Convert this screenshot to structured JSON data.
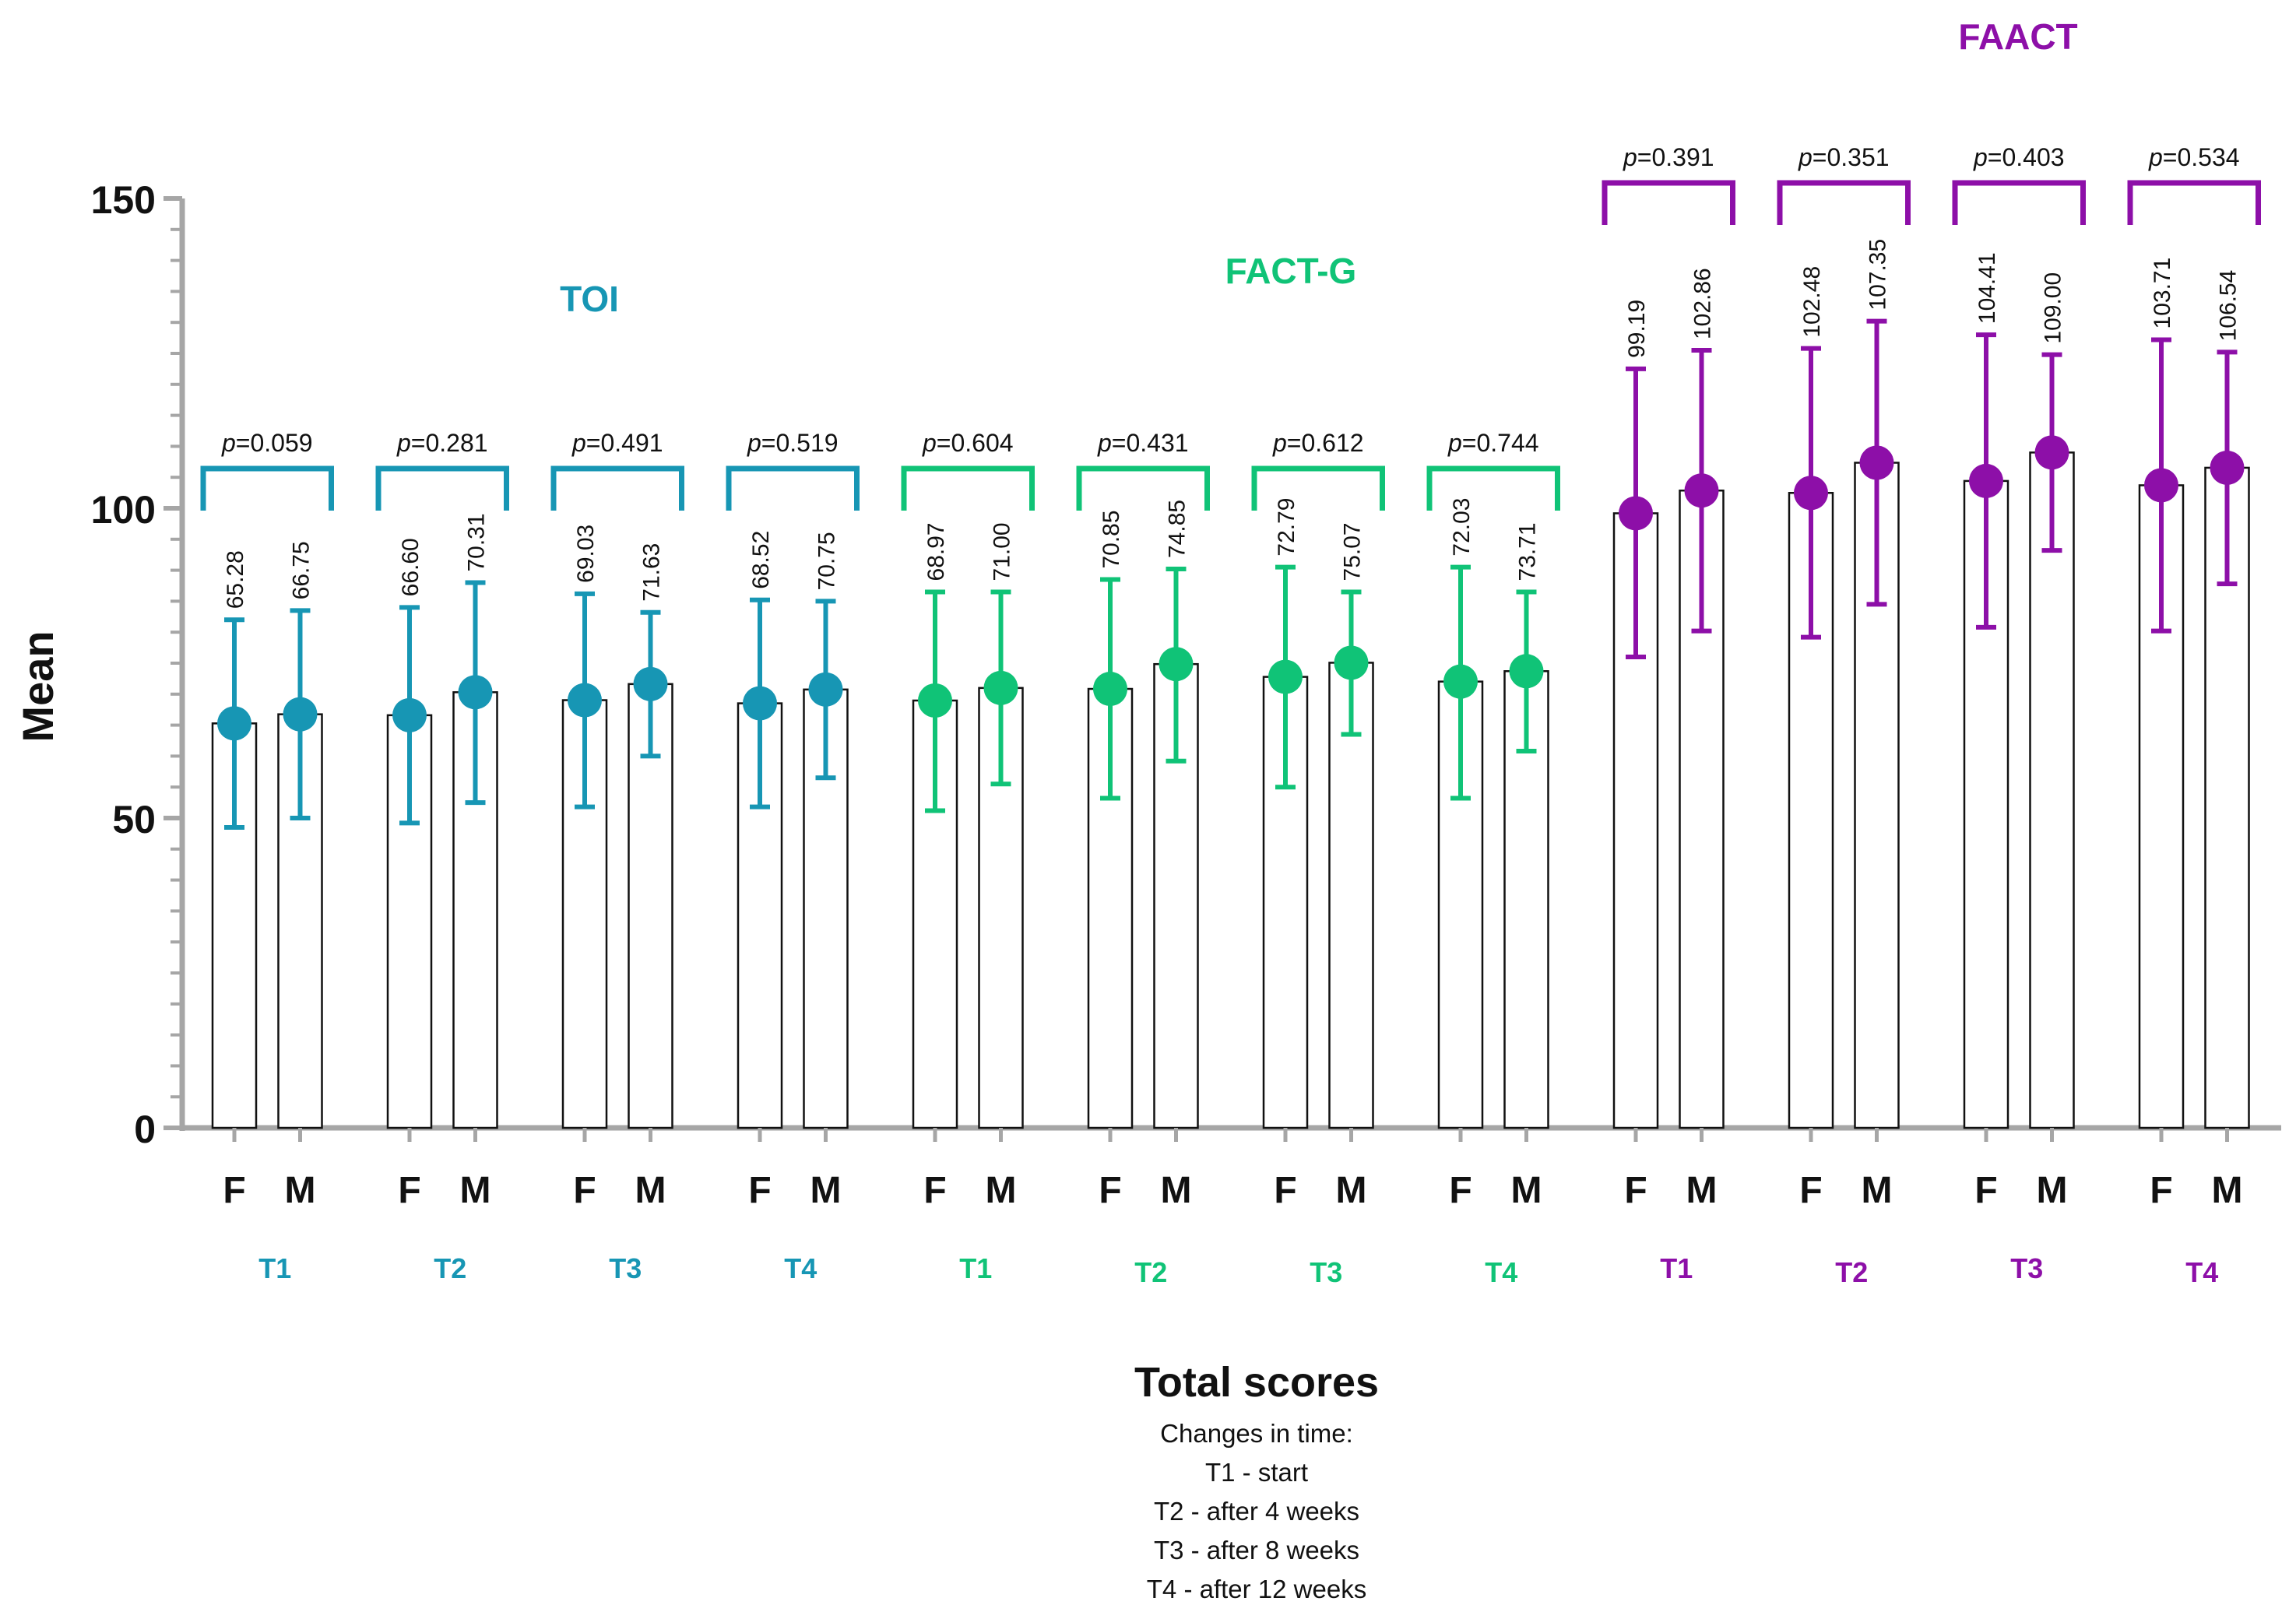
{
  "chart_data": {
    "type": "bar",
    "title": "",
    "ylabel": "Mean",
    "xlabel": "Total scores",
    "ylim": [
      0,
      150
    ],
    "y_ticks": [
      "0",
      "50",
      "100",
      "150"
    ],
    "p_prefix": "p",
    "colors": {
      "TOI": "#1796b4",
      "FACT-G": "#10c377",
      "FAACT": "#8d0fa8",
      "bar_fill": "#ffffff",
      "bar_stroke": "#111111",
      "axis": "#a6a6a6"
    },
    "groups": [
      {
        "name": "TOI",
        "timepoints": [
          {
            "label": "T1",
            "p": "=0.059",
            "F": {
              "mean": 65.28,
              "label": "65.28",
              "lo": 48.5,
              "hi": 82
            },
            "M": {
              "mean": 66.75,
              "label": "66.75",
              "lo": 50,
              "hi": 83.5
            }
          },
          {
            "label": "T2",
            "p": "=0.281",
            "F": {
              "mean": 66.6,
              "label": "66.60",
              "lo": 49.2,
              "hi": 84
            },
            "M": {
              "mean": 70.31,
              "label": "70.31",
              "lo": 52.5,
              "hi": 88
            }
          },
          {
            "label": "T3",
            "p": "=0.491",
            "F": {
              "mean": 69.03,
              "label": "69.03",
              "lo": 51.8,
              "hi": 86.2
            },
            "M": {
              "mean": 71.63,
              "label": "71.63",
              "lo": 60,
              "hi": 83.2
            }
          },
          {
            "label": "T4",
            "p": "=0.519",
            "F": {
              "mean": 68.52,
              "label": "68.52",
              "lo": 51.8,
              "hi": 85.2
            },
            "M": {
              "mean": 70.75,
              "label": "70.75",
              "lo": 56.5,
              "hi": 85
            }
          }
        ]
      },
      {
        "name": "FACT-G",
        "timepoints": [
          {
            "label": "T1",
            "p": "=0.604",
            "F": {
              "mean": 68.97,
              "label": "68.97",
              "lo": 51.2,
              "hi": 86.5
            },
            "M": {
              "mean": 71.0,
              "label": "71.00",
              "lo": 55.5,
              "hi": 86.5
            }
          },
          {
            "label": "T2",
            "p": "=0.431",
            "F": {
              "mean": 70.85,
              "label": "70.85",
              "lo": 53.2,
              "hi": 88.5
            },
            "M": {
              "mean": 74.85,
              "label": "74.85",
              "lo": 59.2,
              "hi": 90.2
            }
          },
          {
            "label": "T3",
            "p": "=0.612",
            "F": {
              "mean": 72.79,
              "label": "72.79",
              "lo": 55,
              "hi": 90.5
            },
            "M": {
              "mean": 75.07,
              "label": "75.07",
              "lo": 63.5,
              "hi": 86.5
            }
          },
          {
            "label": "T4",
            "p": "=0.744",
            "F": {
              "mean": 72.03,
              "label": "72.03",
              "lo": 53.2,
              "hi": 90.5
            },
            "M": {
              "mean": 73.71,
              "label": "73.71",
              "lo": 60.8,
              "hi": 86.5
            }
          }
        ]
      },
      {
        "name": "FAACT",
        "timepoints": [
          {
            "label": "T1",
            "p": "=0.391",
            "F": {
              "mean": 99.19,
              "label": "99.19",
              "lo": 76,
              "hi": 122.5
            },
            "M": {
              "mean": 102.86,
              "label": "102.86",
              "lo": 80.2,
              "hi": 125.5
            }
          },
          {
            "label": "T2",
            "p": "=0.351",
            "F": {
              "mean": 102.48,
              "label": "102.48",
              "lo": 79.2,
              "hi": 125.8
            },
            "M": {
              "mean": 107.35,
              "label": "107.35",
              "lo": 84.5,
              "hi": 130.2
            }
          },
          {
            "label": "T3",
            "p": "=0.403",
            "F": {
              "mean": 104.41,
              "label": "104.41",
              "lo": 80.8,
              "hi": 128
            },
            "M": {
              "mean": 109.0,
              "label": "109.00",
              "lo": 93.2,
              "hi": 124.8
            }
          },
          {
            "label": "T4",
            "p": "=0.534",
            "F": {
              "mean": 103.71,
              "label": "103.71",
              "lo": 80.2,
              "hi": 127.2
            },
            "M": {
              "mean": 106.54,
              "label": "106.54",
              "lo": 87.8,
              "hi": 125.2
            }
          }
        ]
      }
    ],
    "caption": {
      "title": "Total scores",
      "lines": [
        "Changes in time:",
        "T1 - start",
        "T2 - after 4 weeks",
        "T3 - after 8 weeks",
        "T4 - after 12 weeks"
      ]
    }
  }
}
